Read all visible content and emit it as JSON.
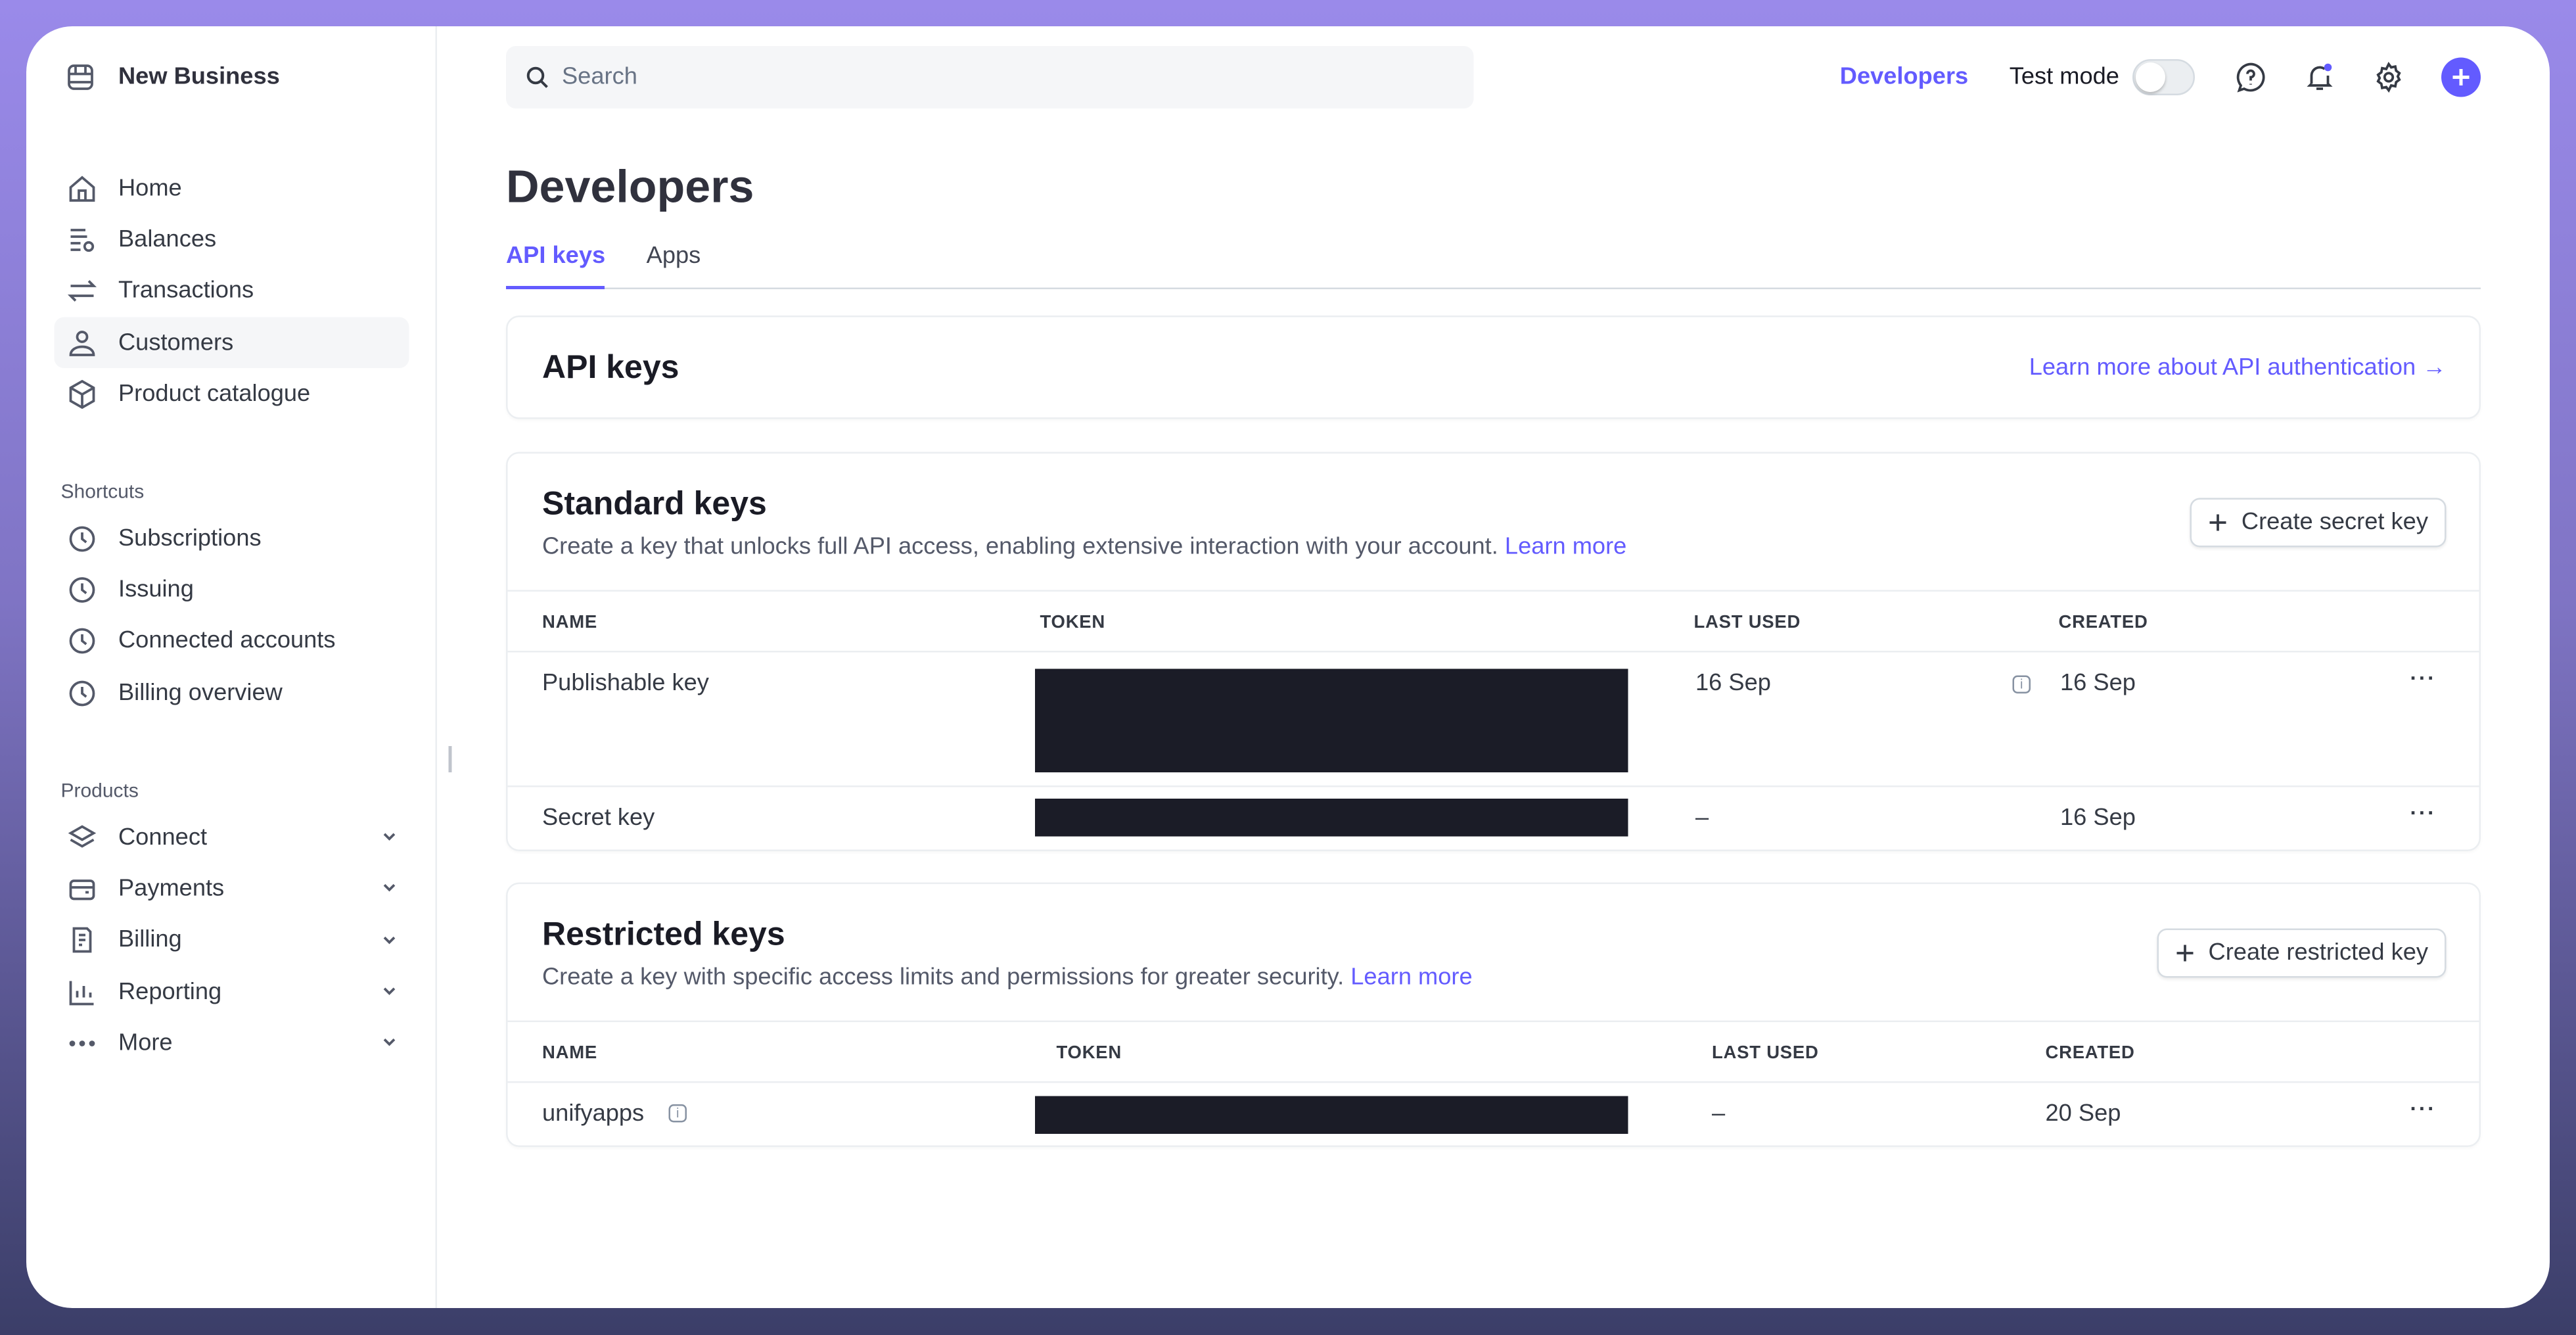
{
  "business_name": "New Business",
  "nav": {
    "main": [
      {
        "label": "Home",
        "icon": "home-icon"
      },
      {
        "label": "Balances",
        "icon": "balances-icon"
      },
      {
        "label": "Transactions",
        "icon": "transactions-icon"
      },
      {
        "label": "Customers",
        "icon": "customers-icon",
        "active": true
      },
      {
        "label": "Product catalogue",
        "icon": "box-icon"
      }
    ],
    "shortcuts_title": "Shortcuts",
    "shortcuts": [
      {
        "label": "Subscriptions"
      },
      {
        "label": "Issuing"
      },
      {
        "label": "Connected accounts"
      },
      {
        "label": "Billing overview"
      }
    ],
    "products_title": "Products",
    "products": [
      {
        "label": "Connect"
      },
      {
        "label": "Payments"
      },
      {
        "label": "Billing"
      },
      {
        "label": "Reporting"
      },
      {
        "label": "More"
      }
    ]
  },
  "header": {
    "search_placeholder": "Search",
    "developers": "Developers",
    "test_mode": "Test mode",
    "test_mode_on": false,
    "accent": "#635bff"
  },
  "page": {
    "title": "Developers",
    "tabs": [
      {
        "label": "API keys",
        "active": true
      },
      {
        "label": "Apps"
      }
    ],
    "api_keys_title": "API keys",
    "learn_auth": "Learn more about API authentication →"
  },
  "standard": {
    "title": "Standard keys",
    "desc": "Create a key that unlocks full API access, enabling extensive interaction with your account.",
    "learn": "Learn more",
    "button": "Create secret key",
    "columns": [
      "NAME",
      "TOKEN",
      "LAST USED",
      "CREATED"
    ],
    "rows": [
      {
        "name": "Publishable key",
        "last_used": "16 Sep",
        "created": "16 Sep"
      },
      {
        "name": "Secret key",
        "last_used": "–",
        "created": "16 Sep"
      }
    ]
  },
  "restricted": {
    "title": "Restricted keys",
    "desc": "Create a key with specific access limits and permissions for greater security.",
    "learn": "Learn more",
    "button": "Create restricted key",
    "columns": [
      "NAME",
      "TOKEN",
      "LAST USED",
      "CREATED"
    ],
    "rows": [
      {
        "name": "unifyapps",
        "last_used": "–",
        "created": "20 Sep"
      }
    ]
  }
}
